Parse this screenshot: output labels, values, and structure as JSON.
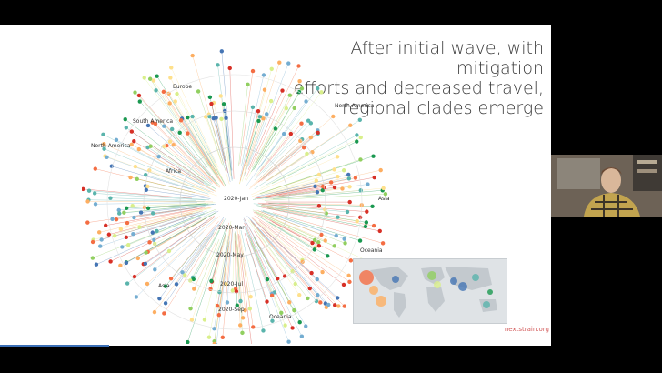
{
  "slide": {
    "title_lines": [
      "After initial wave, with mitigation",
      "efforts and decreased travel,",
      "regional clades emerge"
    ],
    "credit": "nextstrain.org",
    "tree_labels": [
      "Europe",
      "South America",
      "North America",
      "North America",
      "Africa",
      "Asia",
      "Oceania",
      "Asia",
      "Oceania",
      "2020-Jan",
      "2020-Mar",
      "2020-May",
      "2020-Jul",
      "2020-Sep"
    ]
  },
  "colors": {
    "background": "#000000",
    "slide": "#ffffff",
    "credit": "#d35a5a",
    "clades": [
      "#d73027",
      "#f46d43",
      "#fdae61",
      "#fee08b",
      "#d9ef8b",
      "#91cf60",
      "#1a9850",
      "#5ab4ac",
      "#4575b4",
      "#74add1"
    ]
  },
  "webcam": {
    "icon": "person-video-icon"
  }
}
